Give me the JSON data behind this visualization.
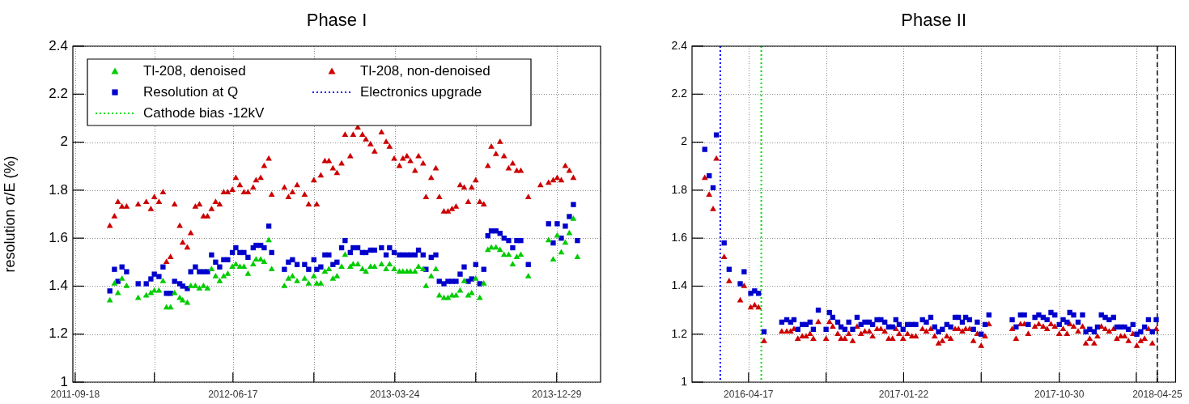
{
  "chart_data": [
    {
      "type": "scatter",
      "title": "Phase I",
      "ylabel": "resolution σ/E (%)",
      "legend": "top left",
      "grid": true,
      "xlim": [
        "2011-09-14",
        "2014-03-15"
      ],
      "xticks": [
        "2011-09-18",
        {
          "value": "2012-02-02",
          "label": null
        },
        "2012-06-17",
        {
          "value": "2012-11-04",
          "label": null
        },
        "2013-03-24",
        {
          "value": "2013-08-11",
          "label": null
        },
        "2013-12-29"
      ],
      "ylim": [
        1,
        2.4
      ],
      "yticks": [
        1,
        1.2,
        1.4,
        1.6,
        1.8,
        2,
        2.2,
        2.4
      ],
      "x": [
        "2011-11-17",
        "2011-11-25",
        "2011-12-01",
        "2011-12-08",
        "2011-12-16",
        "2012-01-05",
        "2012-01-19",
        "2012-01-27",
        "2012-02-02",
        "2012-02-10",
        "2012-02-17",
        "2012-02-23",
        "2012-03-01",
        "2012-03-08",
        "2012-03-17",
        "2012-03-22",
        "2012-03-30",
        "2012-04-05",
        "2012-04-13",
        "2012-04-20",
        "2012-04-27",
        "2012-05-04",
        "2012-05-11",
        "2012-05-18",
        "2012-05-25",
        "2012-06-01",
        "2012-06-08",
        "2012-06-16",
        "2012-06-22",
        "2012-06-29",
        "2012-07-06",
        "2012-07-13",
        "2012-07-22",
        "2012-07-27",
        "2012-08-04",
        "2012-08-10",
        "2012-08-18",
        "2012-08-23",
        "2012-09-14",
        "2012-09-21",
        "2012-09-28",
        "2012-10-06",
        "2012-10-19",
        "2012-10-26",
        "2012-11-04",
        "2012-11-09",
        "2012-11-16",
        "2012-11-23",
        "2012-11-30",
        "2012-12-07",
        "2012-12-14",
        "2012-12-22",
        "2012-12-28",
        "2013-01-06",
        "2013-01-11",
        "2013-01-19",
        "2013-01-27",
        "2013-02-02",
        "2013-02-10",
        "2013-02-17",
        "2013-03-01",
        "2013-03-09",
        "2013-03-15",
        "2013-03-23",
        "2013-04-01",
        "2013-04-07",
        "2013-04-14",
        "2013-04-20",
        "2013-04-28",
        "2013-05-04",
        "2013-05-12",
        "2013-05-17",
        "2013-05-26",
        "2013-06-03",
        "2013-06-09",
        "2013-06-17",
        "2013-06-24",
        "2013-07-01",
        "2013-07-08",
        "2013-07-15",
        "2013-07-22",
        "2013-07-29",
        "2013-08-04",
        "2013-08-11",
        "2013-08-18",
        "2013-08-25",
        "2013-09-01",
        "2013-09-07",
        "2013-09-15",
        "2013-09-22",
        "2013-09-29",
        "2013-10-07",
        "2013-10-14",
        "2013-10-21",
        "2013-10-28",
        "2013-11-10",
        "2013-12-01",
        "2013-12-15",
        "2013-12-23",
        "2013-12-30",
        "2014-01-06",
        "2014-01-13",
        "2014-01-20",
        "2014-01-27",
        "2014-02-03"
      ],
      "series": [
        {
          "name": "Tl-208, denoised",
          "color": "#00cc00",
          "marker": "triangle",
          "values": [
            1.34,
            1.41,
            1.37,
            1.43,
            1.4,
            1.35,
            1.36,
            1.37,
            1.38,
            1.38,
            1.42,
            1.31,
            1.31,
            1.37,
            1.35,
            1.34,
            1.33,
            1.4,
            1.4,
            1.39,
            1.4,
            1.39,
            1.47,
            1.44,
            1.42,
            1.44,
            1.45,
            1.48,
            1.49,
            1.48,
            1.48,
            1.45,
            1.49,
            1.51,
            1.51,
            1.5,
            1.59,
            1.47,
            1.4,
            1.43,
            1.44,
            1.42,
            1.43,
            1.41,
            1.44,
            1.41,
            1.41,
            1.46,
            1.47,
            1.43,
            1.44,
            1.48,
            1.53,
            1.48,
            1.49,
            1.49,
            1.47,
            1.46,
            1.48,
            1.48,
            1.49,
            1.47,
            1.49,
            1.47,
            1.46,
            1.46,
            1.46,
            1.46,
            1.46,
            1.48,
            1.47,
            1.4,
            1.44,
            1.47,
            1.36,
            1.35,
            1.35,
            1.36,
            1.36,
            1.38,
            1.42,
            1.36,
            1.37,
            1.43,
            1.35,
            1.41,
            1.55,
            1.56,
            1.56,
            1.55,
            1.53,
            1.53,
            1.49,
            1.52,
            1.53,
            1.44,
            null,
            1.59,
            1.51,
            1.61,
            1.54,
            1.58,
            1.62,
            1.68,
            1.52
          ]
        },
        {
          "name": "Tl-208, non-denoised",
          "color": "#cc0000",
          "marker": "triangle",
          "values": [
            1.65,
            1.69,
            1.75,
            1.73,
            1.73,
            1.74,
            1.75,
            1.72,
            1.77,
            1.75,
            1.79,
            1.5,
            1.52,
            1.74,
            1.65,
            1.58,
            1.56,
            1.62,
            1.73,
            1.74,
            1.69,
            1.69,
            1.72,
            1.75,
            1.74,
            1.79,
            1.79,
            1.8,
            1.85,
            1.82,
            1.79,
            1.79,
            1.81,
            1.84,
            1.85,
            1.9,
            1.93,
            1.78,
            1.81,
            1.77,
            1.79,
            1.82,
            1.78,
            1.74,
            1.84,
            1.74,
            1.86,
            1.92,
            1.92,
            1.89,
            1.87,
            1.91,
            2.03,
            1.94,
            2.03,
            2.06,
            2.03,
            2.01,
            1.99,
            1.96,
            2.04,
            2.0,
            1.98,
            1.93,
            1.9,
            1.93,
            1.94,
            1.92,
            1.88,
            1.94,
            1.91,
            1.77,
            1.85,
            1.89,
            1.77,
            1.71,
            1.71,
            1.72,
            1.73,
            1.82,
            1.81,
            1.75,
            1.81,
            1.84,
            1.75,
            1.74,
            1.9,
            1.98,
            1.95,
            2.0,
            1.94,
            1.89,
            1.91,
            1.88,
            1.88,
            1.77,
            1.82,
            1.83,
            1.84,
            1.85,
            1.84,
            1.9,
            1.88,
            1.85,
            null
          ]
        },
        {
          "name": "Resolution at Q",
          "color": "#0000cc",
          "marker": "square",
          "values": [
            1.38,
            1.47,
            1.42,
            1.48,
            1.46,
            1.41,
            1.41,
            1.43,
            1.45,
            1.44,
            1.48,
            1.37,
            1.37,
            1.42,
            1.41,
            1.4,
            1.39,
            1.46,
            1.48,
            1.46,
            1.46,
            1.46,
            1.53,
            1.5,
            1.48,
            1.51,
            1.51,
            1.54,
            1.56,
            1.54,
            1.54,
            1.52,
            1.56,
            1.57,
            1.57,
            1.56,
            1.65,
            1.54,
            1.47,
            1.5,
            1.51,
            1.49,
            1.49,
            1.47,
            1.51,
            1.47,
            1.48,
            1.53,
            1.53,
            1.49,
            1.5,
            1.56,
            1.59,
            1.54,
            1.56,
            1.56,
            1.54,
            1.54,
            1.55,
            1.55,
            1.56,
            1.53,
            1.56,
            1.54,
            1.53,
            1.53,
            1.53,
            1.53,
            1.53,
            1.55,
            1.53,
            1.47,
            1.52,
            1.53,
            1.42,
            1.41,
            1.42,
            1.42,
            1.42,
            1.45,
            1.48,
            1.42,
            1.43,
            1.49,
            1.41,
            1.47,
            1.61,
            1.63,
            1.63,
            1.62,
            1.6,
            1.59,
            1.56,
            1.59,
            1.59,
            1.49,
            null,
            1.66,
            1.58,
            1.66,
            1.6,
            1.65,
            1.69,
            1.74,
            1.59
          ]
        }
      ]
    },
    {
      "type": "scatter",
      "title": "Phase II",
      "grid": true,
      "xlim": [
        "2016-01-06",
        "2018-05-28"
      ],
      "xticks": [
        "2016-04-17",
        {
          "value": "2016-09-04",
          "label": null
        },
        "2017-01-22",
        {
          "value": "2017-06-11",
          "label": null
        },
        "2017-10-30",
        {
          "value": "2018-03-18",
          "label": null
        },
        "2018-04-25"
      ],
      "ylim": [
        1,
        2.4
      ],
      "yticks": [
        1,
        1.2,
        1.4,
        1.6,
        1.8,
        2,
        2.2,
        2.4
      ],
      "ref_lines": [
        {
          "axis": "x",
          "value": "2016-02-26",
          "label": "Electronics upgrade",
          "color": "#0000ff",
          "line_style": "dotted"
        },
        {
          "axis": "x",
          "value": "2016-05-10",
          "label": "Cathode bias -12kV",
          "color": "#00dd00",
          "line_style": "dotted"
        },
        {
          "axis": "x",
          "value": "2018-04-25",
          "color": "#444444",
          "line_style": "dashed"
        }
      ],
      "x": [
        "2016-01-29",
        "2016-02-06",
        "2016-02-13",
        "2016-02-19",
        "2016-03-04",
        "2016-03-13",
        "2016-04-02",
        "2016-04-09",
        "2016-04-21",
        "2016-04-28",
        "2016-05-05",
        "2016-05-15",
        "2016-06-16",
        "2016-06-25",
        "2016-07-02",
        "2016-07-08",
        "2016-07-15",
        "2016-07-23",
        "2016-07-30",
        "2016-08-06",
        "2016-08-12",
        "2016-08-21",
        "2016-09-04",
        "2016-09-10",
        "2016-09-16",
        "2016-09-25",
        "2016-10-01",
        "2016-10-08",
        "2016-10-15",
        "2016-10-22",
        "2016-10-30",
        "2016-11-06",
        "2016-11-13",
        "2016-11-21",
        "2016-11-27",
        "2016-12-05",
        "2016-12-12",
        "2016-12-19",
        "2016-12-26",
        "2017-01-02",
        "2017-01-08",
        "2017-01-14",
        "2017-01-21",
        "2017-01-29",
        "2017-02-06",
        "2017-02-13",
        "2017-02-25",
        "2017-03-04",
        "2017-03-12",
        "2017-03-19",
        "2017-03-26",
        "2017-04-02",
        "2017-04-10",
        "2017-04-17",
        "2017-04-25",
        "2017-05-01",
        "2017-05-08",
        "2017-05-14",
        "2017-05-21",
        "2017-05-28",
        "2017-06-04",
        "2017-06-11",
        "2017-06-18",
        "2017-06-25",
        "2017-08-06",
        "2017-08-13",
        "2017-08-21",
        "2017-08-28",
        "2017-09-04",
        "2017-09-16",
        "2017-09-23",
        "2017-10-01",
        "2017-10-08",
        "2017-10-15",
        "2017-10-22",
        "2017-10-30",
        "2017-11-06",
        "2017-11-13",
        "2017-11-18",
        "2017-11-25",
        "2017-12-03",
        "2017-12-11",
        "2017-12-17",
        "2017-12-24",
        "2018-01-01",
        "2018-01-07",
        "2018-01-14",
        "2018-01-21",
        "2018-01-28",
        "2018-02-05",
        "2018-02-11",
        "2018-02-18",
        "2018-02-25",
        "2018-03-04",
        "2018-03-12",
        "2018-03-19",
        "2018-03-26",
        "2018-04-02",
        "2018-04-09",
        "2018-04-16",
        "2018-04-23"
      ],
      "series": [
        {
          "color": "#0000cc",
          "marker": "square",
          "values": [
            1.97,
            1.86,
            1.81,
            2.03,
            1.58,
            1.47,
            1.41,
            1.46,
            1.37,
            1.38,
            1.37,
            1.21,
            1.25,
            1.26,
            1.25,
            1.26,
            1.22,
            1.24,
            1.24,
            1.25,
            1.22,
            1.3,
            1.22,
            1.29,
            1.27,
            1.25,
            1.23,
            1.22,
            1.25,
            1.22,
            1.27,
            1.24,
            1.25,
            1.25,
            1.24,
            1.26,
            1.26,
            1.25,
            1.23,
            1.23,
            1.26,
            1.24,
            1.22,
            1.24,
            1.24,
            1.24,
            1.26,
            1.25,
            1.27,
            1.23,
            1.21,
            1.22,
            1.24,
            1.23,
            1.27,
            1.27,
            1.25,
            1.27,
            1.26,
            1.22,
            1.25,
            1.2,
            1.24,
            1.28,
            1.26,
            1.23,
            1.28,
            1.28,
            1.24,
            1.27,
            1.28,
            1.27,
            1.26,
            1.29,
            1.28,
            1.24,
            1.26,
            1.25,
            1.29,
            1.28,
            1.25,
            1.28,
            1.21,
            1.22,
            1.21,
            1.23,
            1.28,
            1.27,
            1.26,
            1.27,
            1.23,
            1.23,
            1.23,
            1.22,
            1.24,
            1.2,
            1.21,
            1.23,
            1.26,
            1.21,
            1.26
          ]
        },
        {
          "color": "#cc0000",
          "marker": "triangle",
          "values": [
            1.85,
            1.78,
            1.72,
            1.93,
            1.52,
            1.42,
            1.34,
            1.4,
            1.31,
            1.32,
            1.31,
            1.17,
            1.21,
            1.21,
            1.21,
            1.22,
            1.18,
            1.19,
            1.19,
            1.2,
            1.18,
            1.25,
            1.18,
            1.25,
            1.23,
            1.2,
            1.18,
            1.18,
            1.2,
            1.17,
            1.23,
            1.2,
            1.21,
            1.21,
            1.19,
            1.22,
            1.22,
            1.21,
            1.18,
            1.18,
            1.22,
            1.2,
            1.18,
            1.2,
            1.19,
            1.19,
            1.22,
            1.21,
            1.22,
            1.19,
            1.16,
            1.17,
            1.19,
            1.18,
            1.22,
            1.22,
            1.21,
            1.22,
            1.22,
            1.17,
            1.2,
            1.15,
            1.19,
            1.24,
            1.22,
            1.18,
            1.24,
            1.24,
            1.2,
            1.23,
            1.24,
            1.23,
            1.22,
            1.24,
            1.23,
            1.2,
            1.22,
            1.2,
            1.24,
            1.23,
            1.21,
            1.23,
            1.16,
            1.18,
            1.16,
            1.19,
            1.23,
            1.22,
            1.21,
            1.22,
            1.18,
            1.19,
            1.19,
            1.17,
            1.2,
            1.15,
            1.17,
            1.18,
            1.22,
            1.16,
            1.22
          ]
        }
      ]
    }
  ]
}
